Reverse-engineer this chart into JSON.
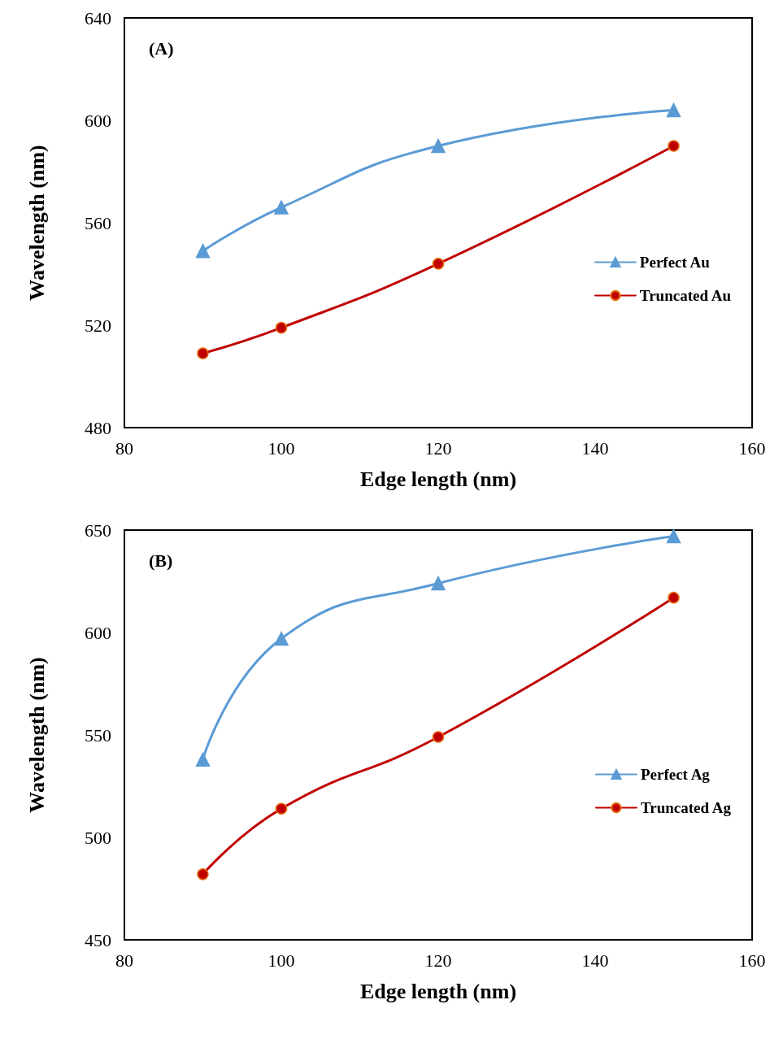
{
  "chart_data": [
    {
      "type": "line",
      "xlabel": "Edge length (nm)",
      "ylabel": "Wavelength (nm)",
      "annotations": [
        "(A)"
      ],
      "x": [
        90,
        100,
        120,
        150
      ],
      "xlim": [
        80,
        160
      ],
      "xticks": [
        80,
        100,
        120,
        140,
        160
      ],
      "ylim": [
        480,
        640
      ],
      "yticks": [
        480,
        520,
        560,
        600,
        640
      ],
      "grid": false,
      "legend": "right",
      "line_style": "solid",
      "series": [
        {
          "name": "Perfect Au",
          "color": "#5b9bd5",
          "marker": "triangle",
          "values": [
            549,
            566,
            590,
            604
          ]
        },
        {
          "name": "Truncated Au",
          "color": "#c00000",
          "marker": "circle",
          "values": [
            509,
            519,
            544,
            590
          ]
        }
      ]
    },
    {
      "type": "line",
      "xlabel": "Edge length (nm)",
      "ylabel": "Wavelength (nm)",
      "annotations": [
        "(B)"
      ],
      "x": [
        90,
        100,
        120,
        150
      ],
      "xlim": [
        80,
        160
      ],
      "xticks": [
        80,
        100,
        120,
        140,
        160
      ],
      "ylim": [
        450,
        650
      ],
      "yticks": [
        450,
        500,
        550,
        600,
        650
      ],
      "grid": false,
      "legend": "right",
      "line_style": "solid",
      "series": [
        {
          "name": "Perfect Ag",
          "color": "#5b9bd5",
          "marker": "triangle",
          "values": [
            538,
            597,
            624,
            647
          ]
        },
        {
          "name": "Truncated Ag",
          "color": "#c00000",
          "marker": "circle",
          "values": [
            482,
            514,
            549,
            617
          ]
        }
      ]
    }
  ]
}
